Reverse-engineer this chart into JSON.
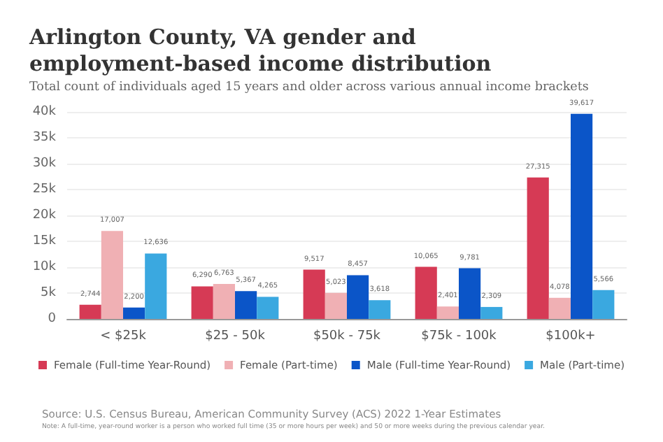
{
  "chart_data": {
    "type": "bar",
    "title": "Arlington County, VA gender and employment-based income distribution",
    "subtitle": "Total count of individuals aged 15 years and older across various annual income brackets",
    "categories": [
      "< $25k",
      "$25 - 50k",
      "$50k - 75k",
      "$75k - 100k",
      "$100k+"
    ],
    "series": [
      {
        "name": "Female (Full-time Year-Round)",
        "color": "#d63a55",
        "values": [
          2744,
          6290,
          9517,
          10065,
          27315
        ],
        "value_labels": [
          "2,744",
          "6,290",
          "9,517",
          "10,065",
          "27,315"
        ]
      },
      {
        "name": "Female (Part-time)",
        "color": "#f0b0b4",
        "values": [
          17007,
          6763,
          5023,
          2401,
          4078
        ],
        "value_labels": [
          "17,007",
          "6,763",
          "5,023",
          "2,401",
          "4,078"
        ]
      },
      {
        "name": "Male (Full-time Year-Round)",
        "color": "#0b55c8",
        "values": [
          2200,
          5367,
          8457,
          9781,
          39617
        ],
        "value_labels": [
          "2,200",
          "5,367",
          "8,457",
          "9,781",
          "39,617"
        ]
      },
      {
        "name": "Male (Part-time)",
        "color": "#3aa8e0",
        "values": [
          12636,
          4265,
          3618,
          2309,
          5566
        ],
        "value_labels": [
          "12,636",
          "4,265",
          "3,618",
          "2,309",
          "5,566"
        ]
      }
    ],
    "ylim": [
      0,
      40000
    ],
    "yticks": [
      0,
      {
        "value": 5000,
        "label": "5k"
      },
      {
        "value": 10000,
        "label": "10k"
      },
      {
        "value": 15000,
        "label": "15k"
      },
      {
        "value": 20000,
        "label": "20k"
      },
      {
        "value": 25000,
        "label": "25k"
      },
      {
        "value": 30000,
        "label": "30k"
      },
      {
        "value": 35000,
        "label": "35k"
      },
      {
        "value": 40000,
        "label": "40k"
      }
    ],
    "grid": "y",
    "legend": "bottom",
    "annotations": [
      "Source: U.S. Census Bureau, American Community Survey (ACS) 2022 1-Year Estimates",
      "Note: A full-time, year-round worker is a person who worked full time (35 or more hours per week) and 50 or more weeks during the previous calendar year."
    ]
  }
}
